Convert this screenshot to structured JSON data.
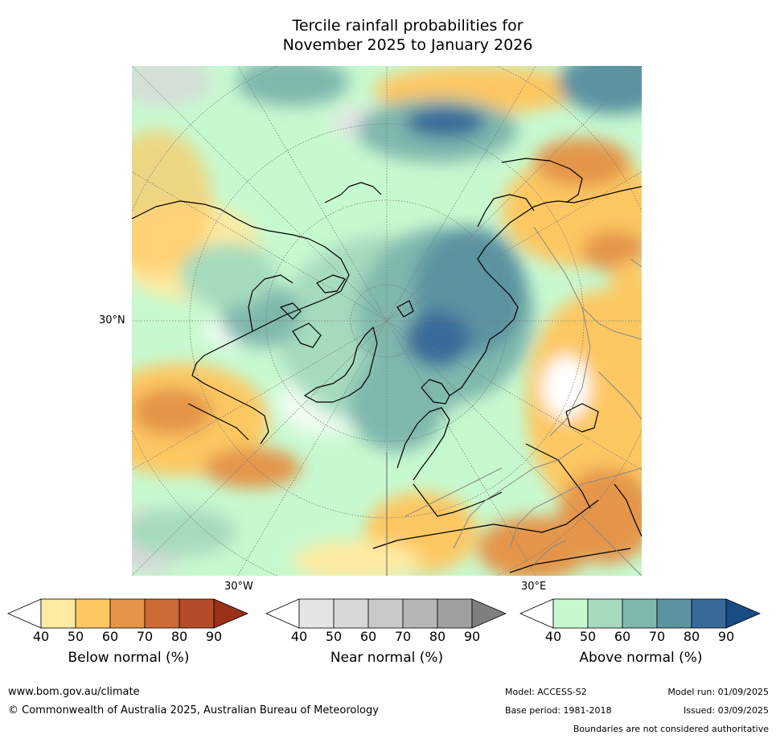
{
  "title": {
    "line1": "Tercile rainfall probabilities for",
    "line2": "November 2025 to January 2026"
  },
  "map": {
    "lat_label": "30°N",
    "lon_label_left": "30°W",
    "lon_label_right": "30°E",
    "colors": {
      "land_coast": "#000000",
      "borders": "#888888",
      "graticule": "#777777"
    }
  },
  "legend": {
    "below": {
      "label": "Below normal (%)",
      "ticks": [
        "40",
        "50",
        "60",
        "70",
        "80",
        "90"
      ],
      "colors": [
        "#ffffff",
        "#feeaa0",
        "#fdc762",
        "#e4954a",
        "#cd6a35",
        "#b54b28",
        "#9a3217"
      ]
    },
    "near": {
      "label": "Near normal (%)",
      "ticks": [
        "40",
        "50",
        "60",
        "70",
        "80",
        "90"
      ],
      "colors": [
        "#ffffff",
        "#e5e5e5",
        "#d8d8d8",
        "#c9c9c9",
        "#b6b6b6",
        "#a0a0a0",
        "#7f7f7f"
      ]
    },
    "above": {
      "label": "Above normal (%)",
      "ticks": [
        "40",
        "50",
        "60",
        "70",
        "80",
        "90"
      ],
      "colors": [
        "#ffffff",
        "#c7f9d0",
        "#a6dbbd",
        "#7fb7ad",
        "#5b93a1",
        "#386a9a",
        "#184d84"
      ]
    }
  },
  "footer": {
    "url": "www.bom.gov.au/climate",
    "copyright": "© Commonwealth of Australia 2025, Australian Bureau of Meteorology",
    "model": "Model: ACCESS-S2",
    "base_period": "Base period: 1981-2018",
    "model_run": "Model run: 01/09/2025",
    "issued": "Issued: 03/09/2025",
    "disclaimer": "Boundaries are not considered authoritative"
  }
}
